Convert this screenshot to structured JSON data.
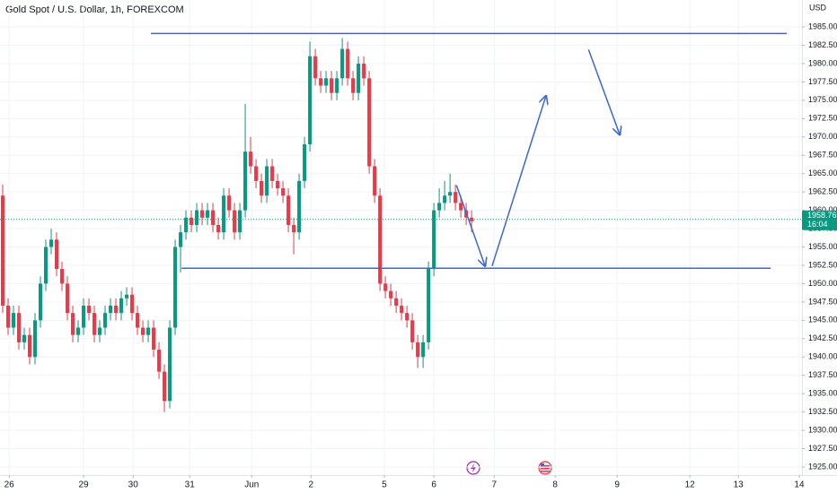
{
  "chart_data": {
    "type": "candlestick",
    "title": "Gold Spot / U.S. Dollar, 1h, FOREXCOM",
    "currency": "USD",
    "open": [
      1962,
      1947,
      1944,
      1946,
      1942,
      1943,
      1940,
      1945,
      1950,
      1955,
      1956,
      1952,
      1950,
      1946,
      1943,
      1944,
      1947,
      1946,
      1943,
      1944,
      1946,
      1947,
      1946,
      1948,
      1948.5,
      1946,
      1944,
      1943,
      1944,
      1941,
      1938,
      1934,
      1944,
      1955,
      1957,
      1959,
      1958,
      1960,
      1959,
      1960,
      1958,
      1957,
      1962,
      1960,
      1957,
      1960,
      1968,
      1966,
      1964,
      1962,
      1966,
      1964,
      1963,
      1962,
      1958,
      1957,
      1964,
      1969,
      1981,
      1978,
      1977,
      1978,
      1976,
      1978,
      1982,
      1978,
      1976,
      1980,
      1978,
      1966,
      1962,
      1950,
      1949,
      1948,
      1947,
      1946,
      1945,
      1942,
      1940,
      1942,
      1952,
      1960,
      1961,
      1962,
      1962.5,
      1961,
      1960,
      1959
    ],
    "high": [
      1963.5,
      1948,
      1947,
      1947,
      1944,
      1944,
      1946,
      1951,
      1956,
      1957.5,
      1957,
      1953,
      1951,
      1947,
      1945,
      1948,
      1948,
      1947,
      1945,
      1947,
      1948,
      1948,
      1949,
      1949.5,
      1949.5,
      1947,
      1945,
      1945,
      1945,
      1942,
      1939,
      1945,
      1956,
      1958,
      1960,
      1960,
      1961,
      1961,
      1961,
      1961,
      1959,
      1963,
      1963,
      1961,
      1961,
      1974.5,
      1970,
      1967,
      1965,
      1967,
      1967,
      1965,
      1964,
      1963,
      1959,
      1965,
      1970,
      1983,
      1982,
      1979,
      1979,
      1979,
      1979,
      1983.5,
      1983,
      1979,
      1981,
      1981,
      1979,
      1967,
      1963,
      1951,
      1950,
      1949,
      1948,
      1947,
      1946,
      1943,
      1943,
      1953,
      1961,
      1963,
      1964,
      1965,
      1963.5,
      1962,
      1961,
      1960
    ],
    "low": [
      1946,
      1943,
      1943,
      1941,
      1941,
      1939,
      1939,
      1944,
      1949,
      1954,
      1951,
      1949,
      1945,
      1942,
      1942,
      1943,
      1945,
      1942,
      1942,
      1943,
      1945,
      1945,
      1945,
      1947,
      1945,
      1943,
      1942,
      1942,
      1940,
      1937,
      1932.5,
      1933,
      1943,
      1951.5,
      1956,
      1957,
      1957,
      1958,
      1958,
      1957,
      1956,
      1956,
      1959,
      1956,
      1956,
      1959,
      1965,
      1963,
      1961,
      1961,
      1963,
      1962,
      1961,
      1957,
      1954,
      1956,
      1963,
      1968,
      1977,
      1976,
      1976,
      1975,
      1975,
      1977,
      1977,
      1975,
      1975,
      1977,
      1965,
      1961,
      1949,
      1948,
      1947,
      1946,
      1945,
      1944,
      1941,
      1938.5,
      1938.5,
      1941,
      1951,
      1959,
      1960,
      1961,
      1960,
      1959,
      1958,
      1957
    ],
    "close": [
      1947,
      1944,
      1946,
      1942,
      1943,
      1940,
      1945,
      1950,
      1955,
      1956,
      1952,
      1950,
      1946,
      1943,
      1944,
      1947,
      1946,
      1943,
      1944,
      1946,
      1947,
      1946,
      1948,
      1948.5,
      1946,
      1944,
      1943,
      1944,
      1941,
      1938,
      1934,
      1944,
      1955,
      1957,
      1959,
      1958,
      1960,
      1959,
      1960,
      1958,
      1957,
      1962,
      1960,
      1957,
      1960,
      1968,
      1966,
      1964,
      1962,
      1966,
      1964,
      1963,
      1962,
      1958,
      1957,
      1964,
      1969,
      1981,
      1978,
      1977,
      1978,
      1976,
      1978,
      1982,
      1978,
      1976,
      1980,
      1978,
      1966,
      1962,
      1950,
      1949,
      1948,
      1947,
      1946,
      1945,
      1942,
      1940,
      1942,
      1952,
      1960,
      1961,
      1962,
      1962.5,
      1961,
      1960,
      1959,
      1958.5
    ],
    "up_color": "#089981",
    "down_color": "#f23645",
    "xlim": [
      -0.5,
      148.3
    ],
    "xticks": [
      {
        "value": 1.2,
        "label": "26"
      },
      {
        "value": 15,
        "label": "29"
      },
      {
        "value": 24.2,
        "label": "30"
      },
      {
        "value": 34.7,
        "label": "31"
      },
      {
        "value": 46.2,
        "label": "Jun"
      },
      {
        "value": 57.2,
        "label": "2"
      },
      {
        "value": 70.8,
        "label": "5"
      },
      {
        "value": 80,
        "label": "6"
      },
      {
        "value": 91.2,
        "label": "7"
      },
      {
        "value": 102.5,
        "label": "8"
      },
      {
        "value": 114,
        "label": "9"
      },
      {
        "value": 127.5,
        "label": "12"
      },
      {
        "value": 136.5,
        "label": "13"
      },
      {
        "value": 147.8,
        "label": "14"
      }
    ],
    "ylim": [
      1923.9,
      1988.67
    ],
    "yticks": [
      {
        "value": 1925,
        "label": "1925.00"
      },
      {
        "value": 1927.5,
        "label": "1927.50"
      },
      {
        "value": 1930,
        "label": "1930.00"
      },
      {
        "value": 1932.5,
        "label": "1932.50"
      },
      {
        "value": 1935,
        "label": "1935.00"
      },
      {
        "value": 1937.5,
        "label": "1937.50"
      },
      {
        "value": 1940,
        "label": "1940.00"
      },
      {
        "value": 1942.5,
        "label": "1942.50"
      },
      {
        "value": 1945,
        "label": "1945.00"
      },
      {
        "value": 1947.5,
        "label": "1947.50"
      },
      {
        "value": 1950,
        "label": "1950.00"
      },
      {
        "value": 1952.5,
        "label": "1952.50"
      },
      {
        "value": 1955,
        "label": "1955.00"
      },
      {
        "value": 1957.5,
        "label": "1957.50"
      },
      {
        "value": 1960,
        "label": "1960.00"
      },
      {
        "value": 1962.5,
        "label": "1962.50"
      },
      {
        "value": 1965,
        "label": "1965.00"
      },
      {
        "value": 1967.5,
        "label": "1967.50"
      },
      {
        "value": 1970,
        "label": "1970.00"
      },
      {
        "value": 1972.5,
        "label": "1972.50"
      },
      {
        "value": 1975,
        "label": "1975.00"
      },
      {
        "value": 1977.5,
        "label": "1977.50"
      },
      {
        "value": 1980,
        "label": "1980.00"
      },
      {
        "value": 1982.5,
        "label": "1982.50"
      },
      {
        "value": 1985,
        "label": "1985.00"
      }
    ],
    "grid": true,
    "last_price": 1958.76,
    "countdown": "16:04",
    "last_price_color": "#089981",
    "drawings": [
      {
        "x": [
          27.5,
          145.5
        ],
        "y": [
          1984.1,
          1984.1
        ],
        "arrow": false,
        "color": "#3a66d6"
      },
      {
        "x": [
          33.2,
          142.5
        ],
        "y": [
          1952.1,
          1952.1
        ],
        "arrow": false,
        "color": "#3a66d6"
      },
      {
        "x": [
          84.2,
          89.5
        ],
        "y": [
          1963.4,
          1952.4
        ],
        "arrow": true,
        "color": "#3a66d6"
      },
      {
        "x": [
          90.8,
          100.8
        ],
        "y": [
          1952.4,
          1975.6
        ],
        "arrow": true,
        "color": "#3a66d6"
      },
      {
        "x": [
          108.7,
          114.5
        ],
        "y": [
          1981.9,
          1970.3
        ],
        "arrow": true,
        "color": "#3a66d6"
      }
    ]
  }
}
